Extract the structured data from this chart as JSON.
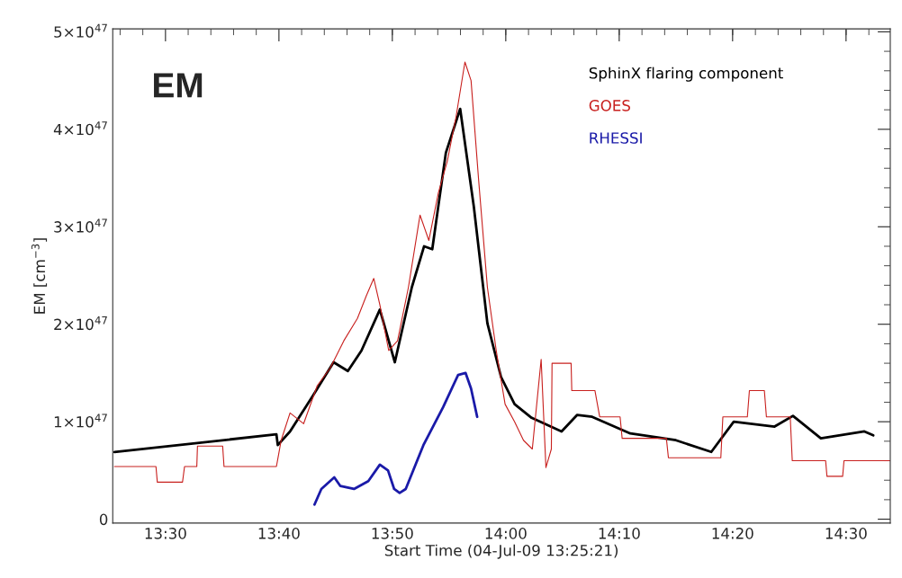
{
  "chart_data": {
    "type": "line",
    "xlabel": "Start Time (04-Jul-09 13:25:21)",
    "ylabel": "EM [cm$^{−3}$]",
    "annotations": [
      "EM"
    ],
    "xlim": [
      13.4225,
      14.565
    ],
    "xticks": [
      {
        "value": 13.5,
        "label": "13:30"
      },
      {
        "value": 13.6667,
        "label": "13:40"
      },
      {
        "value": 13.8333,
        "label": "13:50"
      },
      {
        "value": 14.0,
        "label": "14:00"
      },
      {
        "value": 14.1667,
        "label": "14:10"
      },
      {
        "value": 14.3333,
        "label": "14:20"
      },
      {
        "value": 14.5,
        "label": "14:30"
      }
    ],
    "ylim": [
      -4e+45,
      5.03e+47
    ],
    "yticks": [
      {
        "value": 0,
        "label": "0"
      },
      {
        "value": 1e+47,
        "label": "1×10$^{47}$"
      },
      {
        "value": 2e+47,
        "label": "2×10$^{47}$"
      },
      {
        "value": 3e+47,
        "label": "3×10$^{47}$"
      },
      {
        "value": 4e+47,
        "label": "4×10$^{47}$"
      },
      {
        "value": 5e+47,
        "label": "5×10$^{47}$"
      }
    ],
    "grid": false,
    "legend": "top right",
    "series": [
      {
        "name": "SphinX flaring component",
        "color": "#000000",
        "x": [
          13.425,
          13.663,
          13.665,
          13.683,
          13.717,
          13.747,
          13.768,
          13.788,
          13.815,
          13.837,
          13.862,
          13.88,
          13.892,
          13.912,
          13.933,
          13.953,
          13.973,
          13.993,
          14.013,
          14.038,
          14.082,
          14.105,
          14.127,
          14.183,
          14.25,
          14.302,
          14.335,
          14.395,
          14.422,
          14.463,
          14.527,
          14.54
        ],
        "values": [
          6.9e+46,
          8.7e+46,
          7.6e+46,
          9e+46,
          1.27e+47,
          1.61e+47,
          1.52e+47,
          1.73e+47,
          2.15e+47,
          1.61e+47,
          2.38e+47,
          2.8e+47,
          2.77e+47,
          3.76e+47,
          4.21e+47,
          3.21e+47,
          2.01e+47,
          1.46e+47,
          1.18e+47,
          1.04e+47,
          9e+46,
          1.07e+47,
          1.05e+47,
          8.8e+46,
          8.1e+46,
          6.9e+46,
          1e+47,
          9.5e+46,
          1.06e+47,
          8.3e+46,
          9e+46,
          8.6e+46
        ]
      },
      {
        "name": "GOES",
        "color": "#c8201e",
        "x": [
          13.425,
          13.486,
          13.488,
          13.525,
          13.528,
          13.546,
          13.547,
          13.584,
          13.586,
          13.663,
          13.67,
          13.683,
          13.703,
          13.723,
          13.742,
          13.762,
          13.782,
          13.795,
          13.806,
          13.815,
          13.828,
          13.841,
          13.857,
          13.874,
          13.887,
          13.901,
          13.914,
          13.927,
          13.94,
          13.949,
          13.96,
          13.973,
          13.986,
          13.999,
          14.013,
          14.026,
          14.039,
          14.052,
          14.059,
          14.067,
          14.068,
          14.096,
          14.097,
          14.131,
          14.138,
          14.168,
          14.171,
          14.236,
          14.239,
          14.316,
          14.319,
          14.355,
          14.358,
          14.38,
          14.383,
          14.418,
          14.421,
          14.47,
          14.472,
          14.495,
          14.497,
          14.565
        ],
        "values": [
          5.4e+46,
          5.4e+46,
          3.8e+46,
          3.8e+46,
          5.4e+46,
          5.4e+46,
          7.5e+46,
          7.5e+46,
          5.4e+46,
          5.4e+46,
          8.1e+46,
          1.09e+47,
          9.8e+46,
          1.37e+47,
          1.55e+47,
          1.83e+47,
          2.06e+47,
          2.29e+47,
          2.47e+47,
          2.2e+47,
          1.73e+47,
          1.83e+47,
          2.38e+47,
          3.12e+47,
          2.86e+47,
          3.35e+47,
          3.67e+47,
          4.13e+47,
          4.69e+47,
          4.5e+47,
          3.49e+47,
          2.38e+47,
          1.73e+47,
          1.18e+47,
          1e+47,
          8.1e+46,
          7.2e+46,
          1.64e+47,
          5.3e+46,
          7.2e+46,
          1.6e+47,
          1.6e+47,
          1.32e+47,
          1.32e+47,
          1.05e+47,
          1.05e+47,
          8.3e+46,
          8.3e+46,
          6.3e+46,
          6.3e+46,
          1.05e+47,
          1.05e+47,
          1.32e+47,
          1.32e+47,
          1.05e+47,
          1.05e+47,
          6e+46,
          6e+46,
          4.4e+46,
          4.4e+46,
          6e+46,
          6e+46
        ]
      },
      {
        "name": "RHESSI",
        "color": "#1a1aa8",
        "x": [
          13.719,
          13.729,
          13.748,
          13.757,
          13.777,
          13.798,
          13.815,
          13.827,
          13.836,
          13.844,
          13.853,
          13.879,
          13.908,
          13.93,
          13.941,
          13.949,
          13.958
        ],
        "values": [
          1.5e+46,
          3.1e+46,
          4.3e+46,
          3.4e+46,
          3.1e+46,
          3.9e+46,
          5.6e+46,
          5e+46,
          3.1e+46,
          2.7e+46,
          3.1e+46,
          7.6e+46,
          1.15e+47,
          1.48e+47,
          1.5e+47,
          1.34e+47,
          1.05e+47
        ]
      }
    ]
  }
}
